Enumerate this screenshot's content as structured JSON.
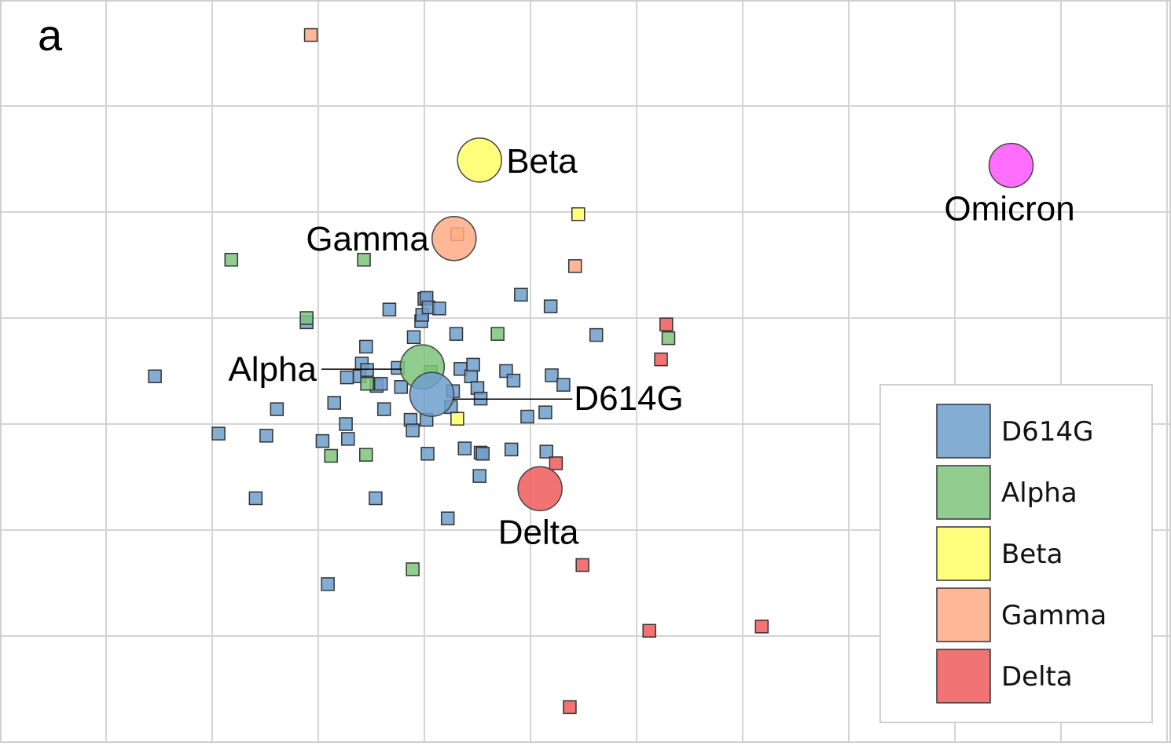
{
  "chart_data": {
    "type": "scatter",
    "panel_label": "a",
    "xlim": [
      0,
      11
    ],
    "ylim": [
      0,
      7
    ],
    "grid": true,
    "legend_position": "bottom-right",
    "colors": {
      "D614G": "#6e9fcc",
      "Alpha": "#7cc47a",
      "Beta": "#ffff66",
      "Gamma": "#ffab85",
      "Delta": "#ee5a5a",
      "Omicron": "#ff55ff"
    },
    "legend": [
      "D614G",
      "Alpha",
      "Beta",
      "Gamma",
      "Delta"
    ],
    "antigens": [
      {
        "name": "Beta",
        "label": "Beta",
        "x": 4.52,
        "y": 5.49,
        "label_side": "right"
      },
      {
        "name": "Gamma",
        "label": "Gamma",
        "x": 4.28,
        "y": 4.75,
        "label_side": "left"
      },
      {
        "name": "Omicron",
        "label": "Omicron",
        "x": 9.53,
        "y": 5.44,
        "label_side": "below"
      },
      {
        "name": "Alpha",
        "label": "Alpha",
        "x": 3.98,
        "y": 3.54,
        "label_side": "left-leader",
        "leader_to_x": 3.0
      },
      {
        "name": "D614G",
        "label": "D614G",
        "x": 4.07,
        "y": 3.28,
        "label_side": "right-leader",
        "leader_to_x": 5.38
      },
      {
        "name": "Delta",
        "label": "Delta",
        "x": 5.09,
        "y": 2.39,
        "label_side": "below"
      }
    ],
    "sera": [
      {
        "group": "D614G",
        "points": [
          [
            1.46,
            3.45
          ],
          [
            2.06,
            2.91
          ],
          [
            2.51,
            2.89
          ],
          [
            2.41,
            2.3
          ],
          [
            2.61,
            3.14
          ],
          [
            2.89,
            3.96
          ],
          [
            3.15,
            3.2
          ],
          [
            3.26,
            3.0
          ],
          [
            3.28,
            2.86
          ],
          [
            3.27,
            3.44
          ],
          [
            3.39,
            3.45
          ],
          [
            3.41,
            3.57
          ],
          [
            3.45,
            3.73
          ],
          [
            3.46,
            3.51
          ],
          [
            3.55,
            3.36
          ],
          [
            3.59,
            3.38
          ],
          [
            3.62,
            3.14
          ],
          [
            3.54,
            2.3
          ],
          [
            3.67,
            4.08
          ],
          [
            3.75,
            3.53
          ],
          [
            3.78,
            3.35
          ],
          [
            3.87,
            3.04
          ],
          [
            3.89,
            2.94
          ],
          [
            3.9,
            3.82
          ],
          [
            3.97,
            3.97
          ],
          [
            4.0,
            4.18
          ],
          [
            4.02,
            4.19
          ],
          [
            3.98,
            4.03
          ],
          [
            4.02,
            3.04
          ],
          [
            4.04,
            4.1
          ],
          [
            4.14,
            4.09
          ],
          [
            4.03,
            2.72
          ],
          [
            4.22,
            2.11
          ],
          [
            4.25,
            3.16
          ],
          [
            4.27,
            3.31
          ],
          [
            4.3,
            3.85
          ],
          [
            4.34,
            3.52
          ],
          [
            4.44,
            3.45
          ],
          [
            4.46,
            3.56
          ],
          [
            4.5,
            3.34
          ],
          [
            4.53,
            3.24
          ],
          [
            4.53,
            2.73
          ],
          [
            4.55,
            2.72
          ],
          [
            4.52,
            2.51
          ],
          [
            4.82,
            2.76
          ],
          [
            4.77,
            3.5
          ],
          [
            4.84,
            3.41
          ],
          [
            4.91,
            4.22
          ],
          [
            4.97,
            3.07
          ],
          [
            5.14,
            3.11
          ],
          [
            5.15,
            2.74
          ],
          [
            5.19,
            4.11
          ],
          [
            5.2,
            3.46
          ],
          [
            5.31,
            3.37
          ],
          [
            5.62,
            3.84
          ],
          [
            3.09,
            1.49
          ],
          [
            4.38,
            2.77
          ],
          [
            3.04,
            2.84
          ]
        ]
      },
      {
        "group": "Alpha",
        "points": [
          [
            2.18,
            4.55
          ],
          [
            3.43,
            4.55
          ],
          [
            2.89,
            4.0
          ],
          [
            4.69,
            3.85
          ],
          [
            6.3,
            3.81
          ],
          [
            3.46,
            3.38
          ],
          [
            4.06,
            3.49
          ],
          [
            3.12,
            2.7
          ],
          [
            3.45,
            2.71
          ],
          [
            3.89,
            1.63
          ]
        ]
      },
      {
        "group": "Beta",
        "points": [
          [
            5.45,
            4.98
          ],
          [
            4.31,
            3.05
          ]
        ]
      },
      {
        "group": "Gamma",
        "points": [
          [
            2.93,
            6.67
          ],
          [
            5.42,
            4.49
          ],
          [
            4.31,
            4.79
          ]
        ]
      },
      {
        "group": "Delta",
        "points": [
          [
            6.28,
            3.94
          ],
          [
            6.23,
            3.61
          ],
          [
            5.24,
            2.63
          ],
          [
            5.49,
            1.67
          ],
          [
            6.12,
            1.05
          ],
          [
            7.18,
            1.09
          ],
          [
            5.37,
            0.33
          ]
        ]
      }
    ]
  }
}
